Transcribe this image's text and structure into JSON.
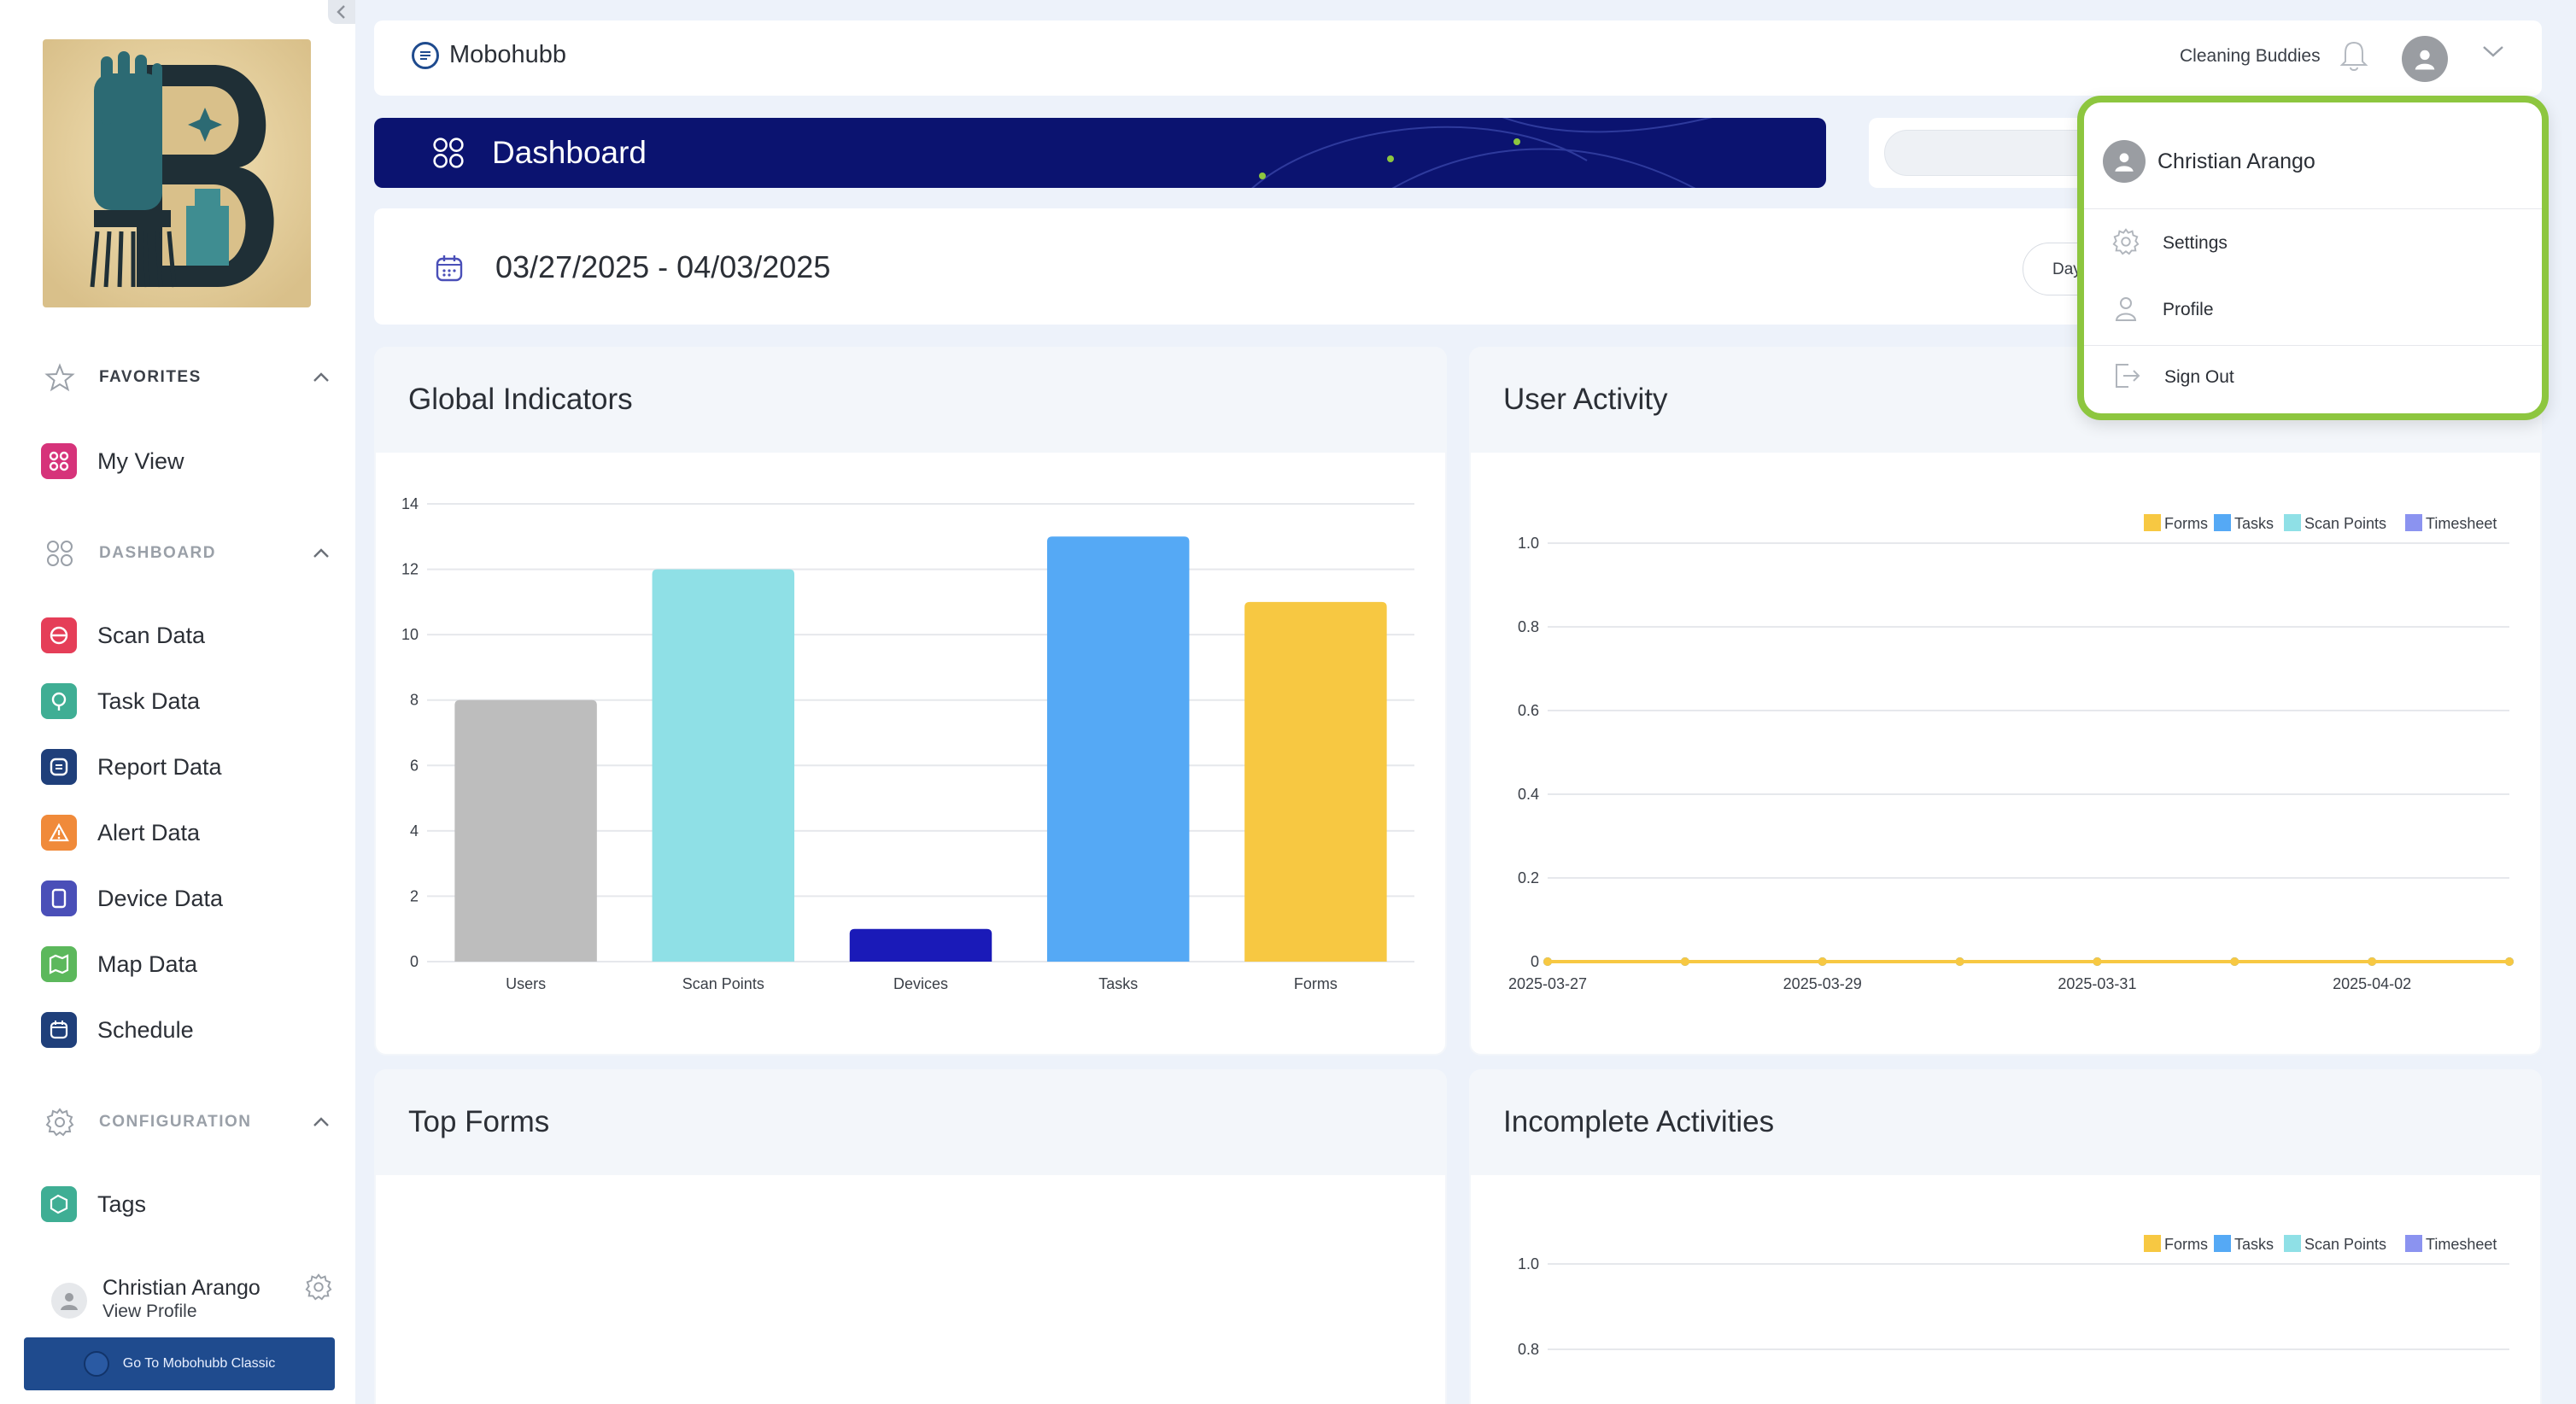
{
  "sidebar": {
    "sections": [
      {
        "label": "FAVORITES",
        "icon": "star-icon"
      },
      {
        "label": "DASHBOARD",
        "icon": "grid-icon"
      },
      {
        "label": "CONFIGURATION",
        "icon": "gear-icon"
      }
    ],
    "favorites": [
      {
        "label": "My View",
        "color": "#d6337a"
      }
    ],
    "dashboard_items": [
      {
        "label": "Scan Data",
        "color": "#e53e58"
      },
      {
        "label": "Task Data",
        "color": "#3fae94"
      },
      {
        "label": "Report Data",
        "color": "#1f3f7a"
      },
      {
        "label": "Alert Data",
        "color": "#f08a3a"
      },
      {
        "label": "Device Data",
        "color": "#4a4fb8"
      },
      {
        "label": "Map Data",
        "color": "#5cb85c"
      },
      {
        "label": "Schedule",
        "color": "#1f3f7a"
      }
    ],
    "configuration_items": [
      {
        "label": "Tags",
        "color": "#3fae94"
      }
    ],
    "user": {
      "name": "Christian Arango",
      "link": "View Profile"
    },
    "classic_button": "Go To Mobohubb Classic"
  },
  "topbar": {
    "brand": "Mobohubb",
    "company": "Cleaning Buddies"
  },
  "banner": {
    "title": "Dashboard"
  },
  "datebar": {
    "range": "03/27/2025 - 04/03/2025",
    "period_button": "Day"
  },
  "cards": {
    "global_indicators": "Global Indicators",
    "user_activity": "User Activity",
    "top_forms": "Top Forms",
    "incomplete_activities": "Incomplete Activities"
  },
  "dropdown": {
    "user_name": "Christian Arango",
    "items": [
      {
        "label": "Settings",
        "icon": "gear-icon"
      },
      {
        "label": "Profile",
        "icon": "person-icon"
      },
      {
        "label": "Sign Out",
        "icon": "sign-out-icon"
      }
    ]
  },
  "chart_data": [
    {
      "type": "bar",
      "title": "Global Indicators",
      "categories": [
        "Users",
        "Scan Points",
        "Devices",
        "Tasks",
        "Forms"
      ],
      "values": [
        8,
        12,
        1,
        13,
        11
      ],
      "colors": [
        "#bdbdbd",
        "#8fe0e6",
        "#1a1ab8",
        "#55a9f5",
        "#f7c842"
      ],
      "ylim": [
        0,
        14
      ],
      "yticks": [
        0,
        2,
        4,
        6,
        8,
        10,
        12,
        14
      ],
      "grid": true
    },
    {
      "type": "line",
      "title": "User Activity",
      "x": [
        "2025-03-27",
        "2025-03-28",
        "2025-03-29",
        "2025-03-30",
        "2025-03-31",
        "2025-04-01",
        "2025-04-02",
        "2025-04-03"
      ],
      "xticks": [
        "2025-03-27",
        "2025-03-29",
        "2025-03-31",
        "2025-04-02"
      ],
      "series": [
        {
          "name": "Forms",
          "color": "#f7c842",
          "values": [
            0,
            0,
            0,
            0,
            0,
            0,
            0,
            0
          ]
        },
        {
          "name": "Tasks",
          "color": "#55a9f5",
          "values": [
            0,
            0,
            0,
            0,
            0,
            0,
            0,
            0
          ]
        },
        {
          "name": "Scan Points",
          "color": "#8fe0e6",
          "values": [
            0,
            0,
            0,
            0,
            0,
            0,
            0,
            0
          ]
        },
        {
          "name": "Timesheet",
          "color": "#8b93f0",
          "values": [
            0,
            0,
            0,
            0,
            0,
            0,
            0,
            0
          ]
        }
      ],
      "ylim": [
        0,
        1.0
      ],
      "yticks": [
        "0",
        "0.2",
        "0.4",
        "0.6",
        "0.8",
        "1.0"
      ],
      "legend": "top-right",
      "grid": true
    },
    {
      "type": "line",
      "title": "Incomplete Activities",
      "series": [
        {
          "name": "Forms",
          "color": "#f7c842"
        },
        {
          "name": "Tasks",
          "color": "#55a9f5"
        },
        {
          "name": "Scan Points",
          "color": "#8fe0e6"
        },
        {
          "name": "Timesheet",
          "color": "#8b93f0"
        }
      ],
      "yticks": [
        "1.0",
        "0.8"
      ],
      "legend": "top-right",
      "grid": true
    }
  ]
}
